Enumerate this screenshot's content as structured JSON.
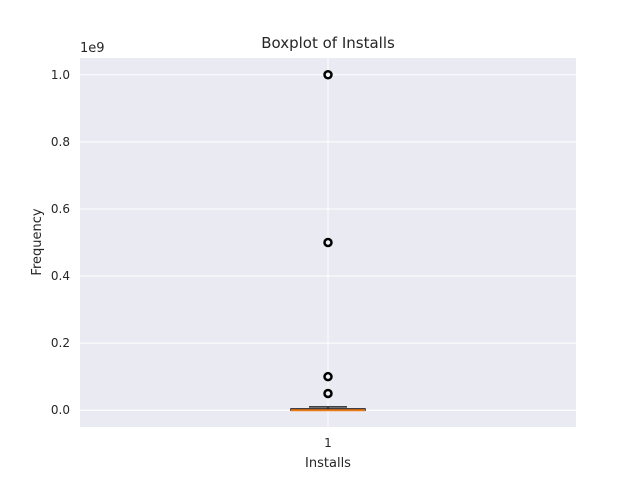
{
  "chart_data": {
    "type": "box",
    "title": "Boxplot of Installs",
    "xlabel": "Installs",
    "ylabel": "Frequency",
    "multiplier": "1e9",
    "ylim": [
      -0.05,
      1.05
    ],
    "ytick_values": [
      0.0,
      0.2,
      0.4,
      0.6,
      0.8,
      1.0
    ],
    "ytick_labels": [
      "0.0",
      "0.2",
      "0.4",
      "0.6",
      "0.8",
      "1.0"
    ],
    "categories": [
      "1"
    ],
    "box": {
      "whisker_low": 0.0,
      "q1": 0.0,
      "median": 0.0,
      "q3": 0.004,
      "whisker_high": 0.01
    },
    "outliers": [
      1.0,
      0.5,
      0.1,
      0.05
    ],
    "grid": true
  }
}
